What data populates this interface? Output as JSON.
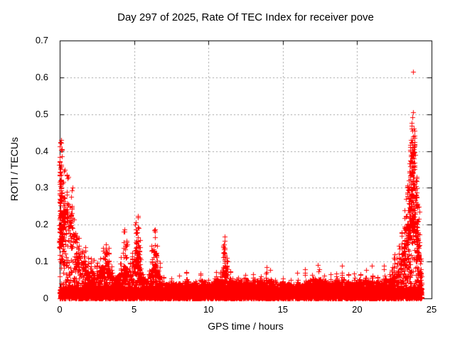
{
  "chart_data": {
    "type": "scatter",
    "title": "Day 297 of 2025, Rate Of TEC Index for receiver pove",
    "xlabel": "GPS time / hours",
    "ylabel": "ROTI / TECUs",
    "xlim": [
      0,
      25
    ],
    "ylim": [
      0,
      0.7
    ],
    "xticks": [
      "0",
      "5",
      "10",
      "15",
      "20",
      "25"
    ],
    "yticks": [
      "0",
      "0.1",
      "0.2",
      "0.3",
      "0.4",
      "0.5",
      "0.6",
      "0.7"
    ],
    "grid": true,
    "legend": false,
    "marker": "+",
    "colors": {
      "points": "#ff0000",
      "grid": "#a0a0a0",
      "axes": "#000000",
      "text": "#000000",
      "background": "#ffffff"
    },
    "data_time_span_hours": [
      0,
      24.35
    ],
    "envelope_profile": {
      "columns": [
        "gps_hour",
        "dense_band_top_tecu",
        "spike_max_tecu"
      ],
      "points": [
        [
          0.0,
          0.16,
          0.43
        ],
        [
          0.1,
          0.17,
          0.43
        ],
        [
          0.2,
          0.18,
          0.32
        ],
        [
          0.35,
          0.24,
          0.3
        ],
        [
          0.5,
          0.26,
          0.335
        ],
        [
          0.65,
          0.22,
          0.27
        ],
        [
          0.8,
          0.23,
          0.3
        ],
        [
          0.95,
          0.19,
          0.23
        ],
        [
          1.1,
          0.16,
          0.2
        ],
        [
          1.3,
          0.13,
          0.17
        ],
        [
          1.5,
          0.1,
          0.14
        ],
        [
          1.7,
          0.09,
          0.15
        ],
        [
          1.9,
          0.08,
          0.12
        ],
        [
          2.1,
          0.08,
          0.12
        ],
        [
          2.3,
          0.07,
          0.11
        ],
        [
          2.5,
          0.06,
          0.1
        ],
        [
          2.7,
          0.07,
          0.12
        ],
        [
          2.9,
          0.09,
          0.14
        ],
        [
          3.1,
          0.09,
          0.15
        ],
        [
          3.3,
          0.08,
          0.14
        ],
        [
          3.5,
          0.06,
          0.09
        ],
        [
          3.7,
          0.05,
          0.08
        ],
        [
          3.9,
          0.06,
          0.09
        ],
        [
          4.1,
          0.07,
          0.12
        ],
        [
          4.3,
          0.09,
          0.2
        ],
        [
          4.5,
          0.08,
          0.16
        ],
        [
          4.7,
          0.06,
          0.1
        ],
        [
          4.9,
          0.07,
          0.14
        ],
        [
          5.1,
          0.1,
          0.22
        ],
        [
          5.25,
          0.1,
          0.25
        ],
        [
          5.4,
          0.08,
          0.16
        ],
        [
          5.6,
          0.05,
          0.08
        ],
        [
          5.8,
          0.05,
          0.07
        ],
        [
          6.0,
          0.05,
          0.08
        ],
        [
          6.2,
          0.08,
          0.15
        ],
        [
          6.4,
          0.09,
          0.19
        ],
        [
          6.55,
          0.08,
          0.16
        ],
        [
          6.75,
          0.06,
          0.1
        ],
        [
          7.0,
          0.04,
          0.07
        ],
        [
          7.5,
          0.04,
          0.06
        ],
        [
          8.0,
          0.04,
          0.07
        ],
        [
          8.5,
          0.05,
          0.08
        ],
        [
          9.0,
          0.04,
          0.06
        ],
        [
          9.5,
          0.05,
          0.07
        ],
        [
          10.0,
          0.04,
          0.06
        ],
        [
          10.5,
          0.05,
          0.08
        ],
        [
          10.8,
          0.05,
          0.08
        ],
        [
          11.0,
          0.07,
          0.15
        ],
        [
          11.1,
          0.07,
          0.17
        ],
        [
          11.25,
          0.06,
          0.12
        ],
        [
          11.5,
          0.05,
          0.08
        ],
        [
          12.0,
          0.05,
          0.07
        ],
        [
          12.5,
          0.05,
          0.08
        ],
        [
          13.0,
          0.05,
          0.07
        ],
        [
          13.5,
          0.05,
          0.08
        ],
        [
          13.9,
          0.05,
          0.09
        ],
        [
          14.2,
          0.05,
          0.08
        ],
        [
          14.5,
          0.04,
          0.07
        ],
        [
          15.0,
          0.04,
          0.07
        ],
        [
          15.5,
          0.04,
          0.06
        ],
        [
          16.0,
          0.04,
          0.07
        ],
        [
          16.5,
          0.04,
          0.08
        ],
        [
          17.0,
          0.05,
          0.08
        ],
        [
          17.4,
          0.05,
          0.09
        ],
        [
          17.8,
          0.05,
          0.08
        ],
        [
          18.2,
          0.04,
          0.07
        ],
        [
          18.6,
          0.05,
          0.08
        ],
        [
          19.0,
          0.05,
          0.09
        ],
        [
          19.4,
          0.04,
          0.07
        ],
        [
          19.8,
          0.04,
          0.07
        ],
        [
          20.2,
          0.05,
          0.08
        ],
        [
          20.6,
          0.05,
          0.08
        ],
        [
          21.0,
          0.05,
          0.09
        ],
        [
          21.4,
          0.04,
          0.08
        ],
        [
          21.8,
          0.05,
          0.09
        ],
        [
          22.2,
          0.05,
          0.1
        ],
        [
          22.5,
          0.06,
          0.12
        ],
        [
          22.8,
          0.08,
          0.15
        ],
        [
          23.0,
          0.1,
          0.18
        ],
        [
          23.2,
          0.13,
          0.25
        ],
        [
          23.4,
          0.17,
          0.33
        ],
        [
          23.55,
          0.2,
          0.42
        ],
        [
          23.7,
          0.24,
          0.62
        ],
        [
          23.85,
          0.22,
          0.46
        ],
        [
          24.0,
          0.17,
          0.35
        ],
        [
          24.15,
          0.12,
          0.25
        ],
        [
          24.3,
          0.07,
          0.12
        ],
        [
          24.35,
          0.04,
          0.05
        ]
      ]
    },
    "outlier_points": {
      "columns": [
        "gps_hour",
        "roti_tecu"
      ],
      "points": [
        [
          0.03,
          0.32
        ],
        [
          0.05,
          0.425
        ],
        [
          0.1,
          0.43
        ],
        [
          0.13,
          0.385
        ],
        [
          0.08,
          0.335
        ],
        [
          0.3,
          0.345
        ],
        [
          0.33,
          0.35
        ],
        [
          0.5,
          0.335
        ],
        [
          0.55,
          0.33
        ],
        [
          0.02,
          0.27
        ],
        [
          0.85,
          0.3
        ],
        [
          23.3,
          0.27
        ],
        [
          23.4,
          0.3
        ],
        [
          23.48,
          0.32
        ],
        [
          23.52,
          0.345
        ],
        [
          23.55,
          0.4
        ],
        [
          23.58,
          0.375
        ],
        [
          23.6,
          0.335
        ],
        [
          23.6,
          0.43
        ],
        [
          23.62,
          0.39
        ],
        [
          23.65,
          0.37
        ],
        [
          23.65,
          0.46
        ],
        [
          23.68,
          0.425
        ],
        [
          23.7,
          0.395
        ],
        [
          23.72,
          0.455
        ],
        [
          23.75,
          0.615
        ],
        [
          23.75,
          0.33
        ],
        [
          23.75,
          0.505
        ],
        [
          23.78,
          0.44
        ],
        [
          23.8,
          0.46
        ],
        [
          23.85,
          0.31
        ],
        [
          23.95,
          0.28
        ],
        [
          24.0,
          0.33
        ]
      ]
    }
  }
}
